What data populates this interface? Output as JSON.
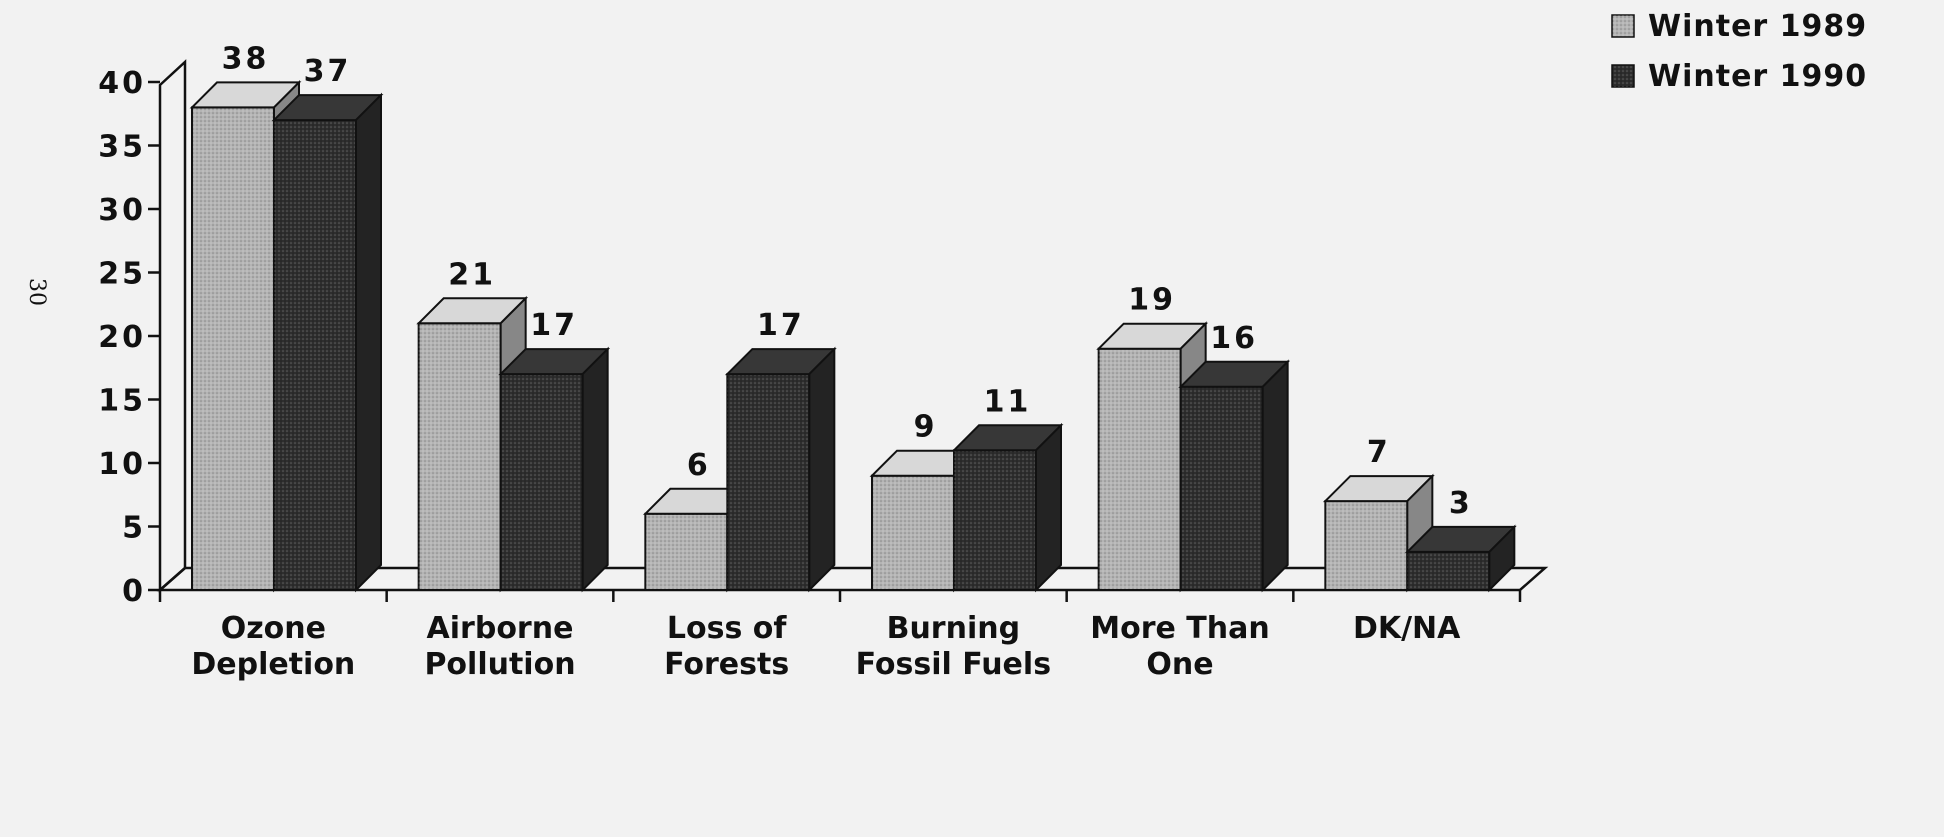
{
  "chart_data": {
    "type": "bar3d",
    "categories": [
      "Ozone\nDepletion",
      "Airborne\nPollution",
      "Loss of\nForests",
      "Burning\nFossil Fuels",
      "More  Than\nOne",
      "DK/NA"
    ],
    "series": [
      {
        "name": "Winter 1989",
        "color": "#b4b4b4",
        "values": [
          38,
          21,
          6,
          9,
          19,
          7
        ]
      },
      {
        "name": "Winter 1990",
        "color": "#2e2e2e",
        "values": [
          37,
          17,
          17,
          11,
          16,
          3
        ]
      }
    ],
    "ylim": [
      0,
      40
    ],
    "yticks": [
      0,
      5,
      10,
      15,
      20,
      25,
      30,
      35,
      40
    ],
    "legend": "top-right",
    "page_number": "30"
  }
}
